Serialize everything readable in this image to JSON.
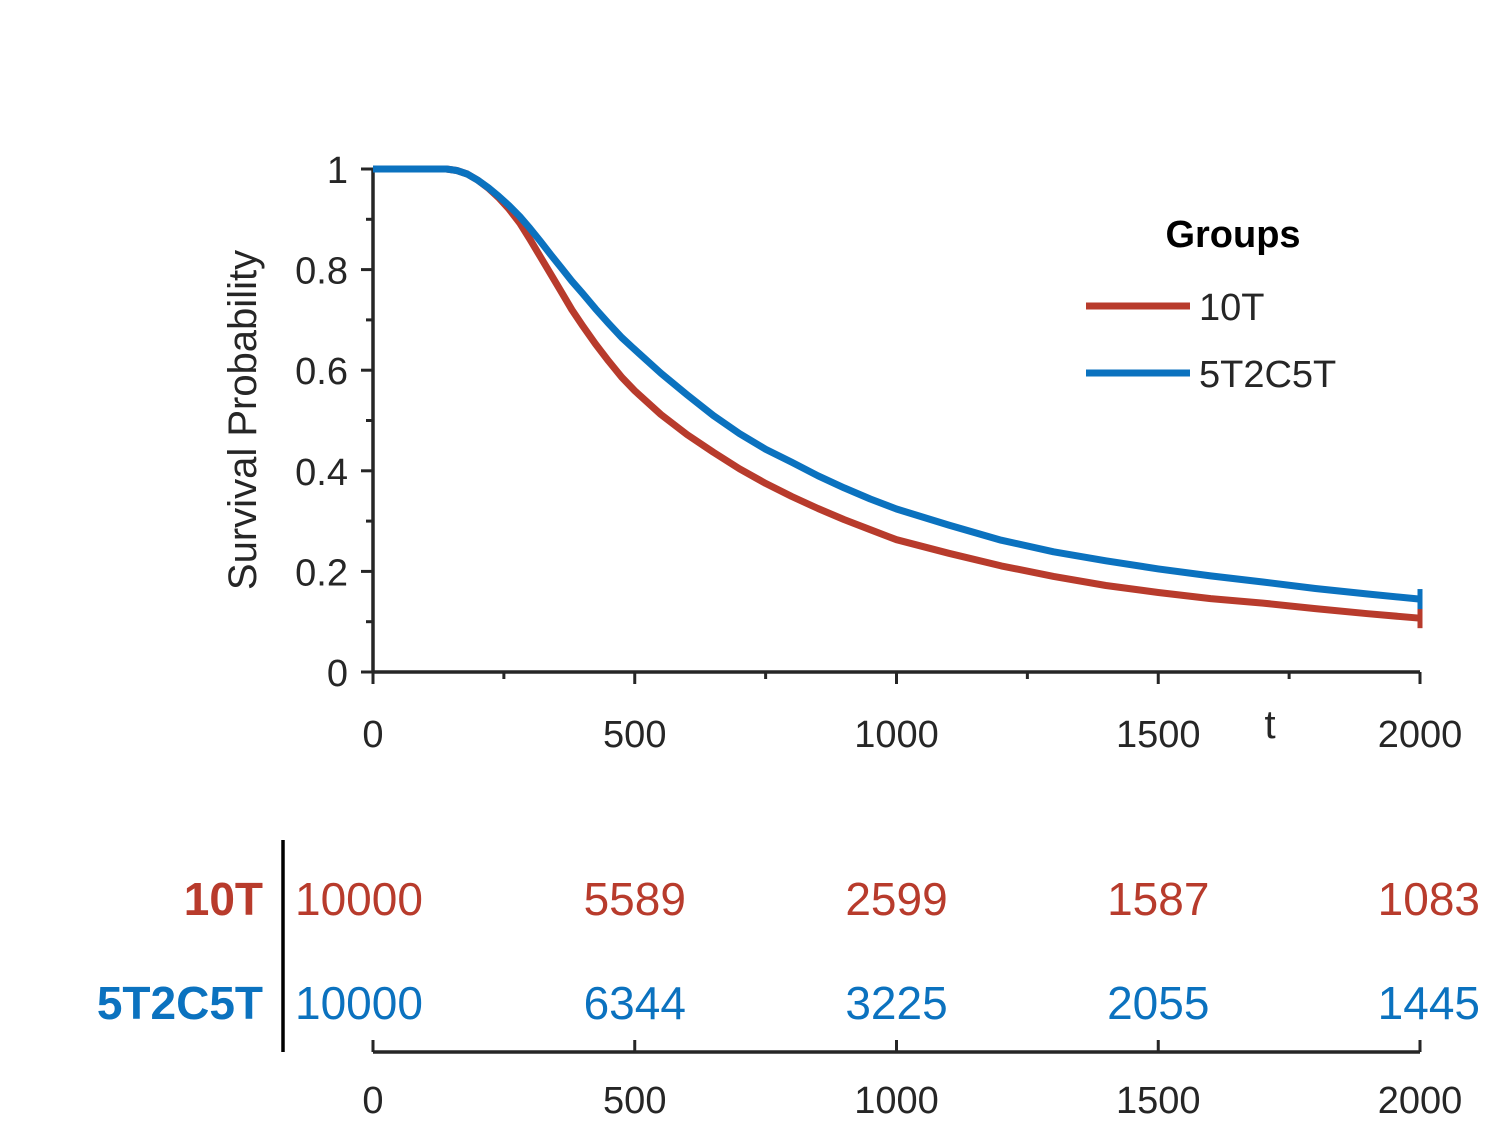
{
  "chart_data": {
    "type": "line",
    "title": "",
    "xlabel": "t",
    "ylabel": "Survival Probability",
    "xlim": [
      0,
      2000
    ],
    "ylim": [
      0,
      1
    ],
    "x_ticks": [
      "0",
      "500",
      "1000",
      "1500",
      "2000"
    ],
    "x_tick_values": [
      0,
      500,
      1000,
      1500,
      2000
    ],
    "x_minor_tick_values": [
      250,
      750,
      1250,
      1750
    ],
    "y_ticks": [
      "0",
      "0.2",
      "0.4",
      "0.6",
      "0.8",
      "1"
    ],
    "y_tick_values": [
      0,
      0.2,
      0.4,
      0.6,
      0.8,
      1
    ],
    "y_minor_tick_values": [
      0.1,
      0.3,
      0.5,
      0.7,
      0.9
    ],
    "grid": false,
    "legend": {
      "title": "Groups",
      "placement": "top-right"
    },
    "series": [
      {
        "name": "10T",
        "color": "#b83b2c",
        "x": [
          0,
          100,
          140,
          160,
          180,
          200,
          220,
          240,
          260,
          280,
          300,
          320,
          340,
          360,
          380,
          400,
          425,
          450,
          475,
          500,
          550,
          600,
          650,
          700,
          750,
          800,
          850,
          900,
          950,
          1000,
          1100,
          1200,
          1300,
          1400,
          1500,
          1600,
          1700,
          1800,
          1900,
          2000
        ],
        "y": [
          1.0,
          1.0,
          1.0,
          0.997,
          0.99,
          0.978,
          0.962,
          0.943,
          0.92,
          0.893,
          0.86,
          0.825,
          0.79,
          0.755,
          0.72,
          0.689,
          0.652,
          0.618,
          0.586,
          0.559,
          0.512,
          0.472,
          0.437,
          0.404,
          0.375,
          0.349,
          0.325,
          0.303,
          0.283,
          0.263,
          0.236,
          0.211,
          0.19,
          0.172,
          0.158,
          0.146,
          0.137,
          0.126,
          0.116,
          0.107
        ]
      },
      {
        "name": "5T2C5T",
        "color": "#0b72bf",
        "x": [
          0,
          100,
          140,
          160,
          180,
          200,
          220,
          240,
          260,
          280,
          300,
          320,
          340,
          360,
          380,
          400,
          425,
          450,
          475,
          500,
          550,
          600,
          650,
          700,
          750,
          800,
          850,
          900,
          950,
          1000,
          1100,
          1200,
          1300,
          1400,
          1500,
          1600,
          1700,
          1800,
          1900,
          2000
        ],
        "y": [
          1.0,
          1.0,
          1.0,
          0.997,
          0.99,
          0.978,
          0.963,
          0.946,
          0.927,
          0.906,
          0.882,
          0.856,
          0.829,
          0.803,
          0.777,
          0.753,
          0.722,
          0.693,
          0.665,
          0.641,
          0.594,
          0.551,
          0.51,
          0.474,
          0.443,
          0.417,
          0.39,
          0.366,
          0.344,
          0.324,
          0.292,
          0.262,
          0.239,
          0.221,
          0.205,
          0.191,
          0.179,
          0.166,
          0.155,
          0.145
        ]
      }
    ],
    "risk_table": {
      "x_ticks": [
        "0",
        "500",
        "1000",
        "1500",
        "2000"
      ],
      "x_tick_values": [
        0,
        500,
        1000,
        1500,
        2000
      ],
      "groups": [
        {
          "name": "10T",
          "color": "#b83b2c",
          "counts": [
            "10000",
            "5589",
            "2599",
            "1587",
            "1083"
          ]
        },
        {
          "name": "5T2C5T",
          "color": "#0b72bf",
          "counts": [
            "10000",
            "6344",
            "3225",
            "2055",
            "1445"
          ]
        }
      ]
    }
  }
}
